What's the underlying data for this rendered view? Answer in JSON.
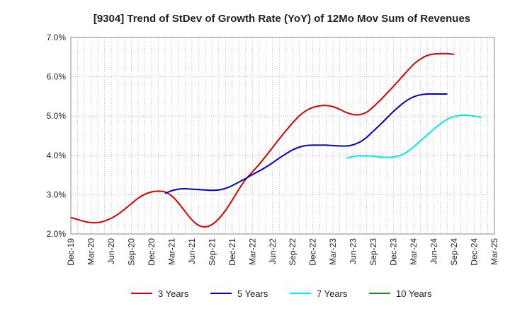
{
  "chart_data": {
    "type": "line",
    "title": "[9304]  Trend of StDev of Growth Rate (YoY) of 12Mo Mov Sum of Revenues",
    "xlabel": "",
    "ylabel": "",
    "ylim": [
      2.0,
      7.0
    ],
    "yticks": [
      "2.0%",
      "3.0%",
      "4.0%",
      "5.0%",
      "6.0%",
      "7.0%"
    ],
    "ytick_values": [
      2.0,
      3.0,
      4.0,
      5.0,
      6.0,
      7.0
    ],
    "xticks": [
      "Dec-19",
      "Mar-20",
      "Jun-20",
      "Sep-20",
      "Dec-20",
      "Mar-21",
      "Jun-21",
      "Sep-21",
      "Dec-21",
      "Mar-22",
      "Jun-22",
      "Sep-22",
      "Dec-22",
      "Mar-23",
      "Jun-23",
      "Sep-23",
      "Dec-23",
      "Mar-24",
      "Jun-24",
      "Sep-24",
      "Dec-24",
      "Mar-25"
    ],
    "grid": true,
    "legend_position": "bottom",
    "series": [
      {
        "name": "3 Years",
        "color": "#dd0000",
        "x_start_index": 0,
        "values": [
          2.42,
          2.37,
          2.32,
          2.29,
          2.29,
          2.33,
          2.4,
          2.5,
          2.63,
          2.77,
          2.91,
          3.01,
          3.07,
          3.09,
          3.07,
          2.97,
          2.79,
          2.57,
          2.36,
          2.22,
          2.18,
          2.24,
          2.39,
          2.6,
          2.86,
          3.14,
          3.39,
          3.58,
          3.77,
          3.98,
          4.2,
          4.42,
          4.63,
          4.83,
          5.01,
          5.14,
          5.22,
          5.26,
          5.27,
          5.24,
          5.17,
          5.09,
          5.04,
          5.04,
          5.1,
          5.24,
          5.4,
          5.58,
          5.76,
          5.95,
          6.14,
          6.32,
          6.45,
          6.54,
          6.58,
          6.59,
          6.59,
          6.57
        ]
      },
      {
        "name": "5 Years",
        "color": "#0000cc",
        "x_start_index": 14,
        "values": [
          3.03,
          3.1,
          3.14,
          3.15,
          3.14,
          3.13,
          3.12,
          3.11,
          3.12,
          3.16,
          3.23,
          3.32,
          3.41,
          3.51,
          3.6,
          3.7,
          3.81,
          3.93,
          4.04,
          4.14,
          4.21,
          4.25,
          4.26,
          4.26,
          4.26,
          4.25,
          4.24,
          4.24,
          4.27,
          4.34,
          4.46,
          4.62,
          4.78,
          4.95,
          5.12,
          5.27,
          5.4,
          5.49,
          5.54,
          5.56,
          5.56,
          5.56,
          5.56
        ]
      },
      {
        "name": "7 Years",
        "color": "#00eeee",
        "x_start_index": 41,
        "values": [
          3.93,
          3.97,
          3.99,
          3.99,
          3.98,
          3.96,
          3.95,
          3.96,
          4.0,
          4.09,
          4.22,
          4.37,
          4.52,
          4.67,
          4.81,
          4.92,
          4.99,
          5.02,
          5.02,
          5.0,
          4.97
        ]
      },
      {
        "name": "10 Years",
        "color": "#228822",
        "x_start_index": 0,
        "values": []
      }
    ]
  }
}
